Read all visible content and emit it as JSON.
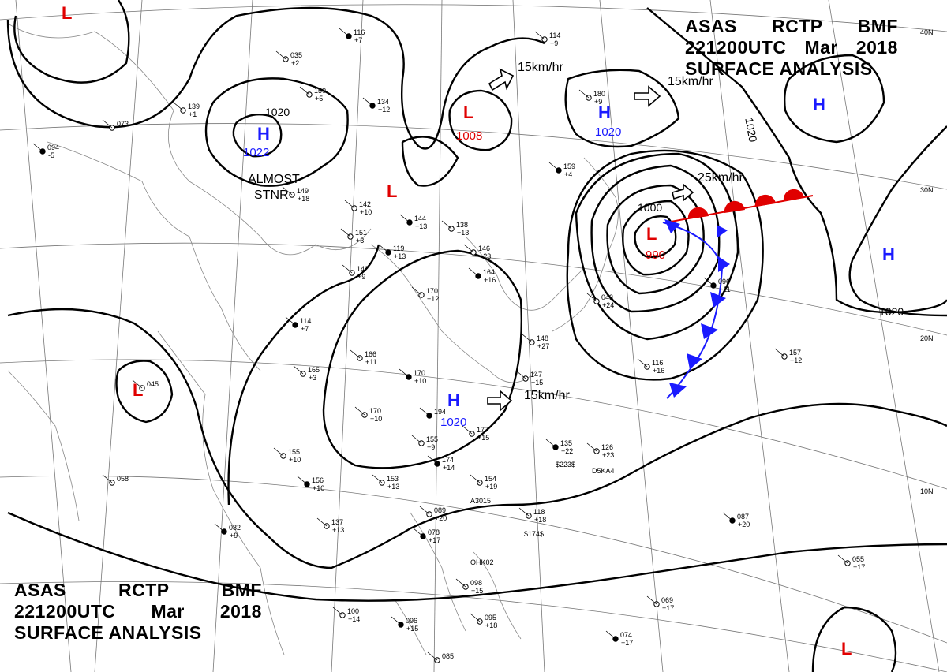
{
  "header": {
    "line1": [
      "ASAS",
      "RCTP",
      "BMF"
    ],
    "line2": [
      "221200UTC",
      "Mar",
      "2018"
    ],
    "line3": "SURFACE ANALYSIS"
  },
  "lat_labels": [
    "40N",
    "30N",
    "20N",
    "10N"
  ],
  "pressure_centers": {
    "high_west": {
      "letter": "H",
      "value": "1022"
    },
    "high_center": {
      "letter": "H",
      "value": "1020"
    },
    "high_north": {
      "letter": "H",
      "value": "1020"
    },
    "high_ne": {
      "letter": "H"
    },
    "high_east": {
      "letter": "H"
    },
    "low_center": {
      "letter": "L",
      "value": "1008"
    },
    "low_main": {
      "letter": "L",
      "value": "990"
    },
    "low_inland": {
      "letter": "L"
    },
    "low_west": {
      "letter": "L"
    },
    "low_se": {
      "letter": "L"
    },
    "low_top": {
      "letter": "L"
    }
  },
  "isobar_labels": [
    "1020",
    "1020",
    "1000",
    "1020",
    "1020"
  ],
  "annotations": {
    "stationary_line1": "ALMOST",
    "stationary_line2": "STNR"
  },
  "motion_vectors": [
    "15km/hr",
    "15km/hr",
    "25km/hr",
    "15km/hr"
  ],
  "colors": {
    "high": "#1a1aff",
    "low": "#e00000",
    "front_warm": "#e00000",
    "front_cold": "#1a1aff"
  },
  "stations": [
    {
      "t": "116",
      "d": "+7"
    },
    {
      "t": "035",
      "d": "+2"
    },
    {
      "t": "150",
      "d": "+5"
    },
    {
      "t": "134",
      "d": "+12"
    },
    {
      "t": "139",
      "d": "+1"
    },
    {
      "t": "073",
      "d": ""
    },
    {
      "t": "094",
      "d": "-5"
    },
    {
      "t": "142",
      "d": "+10"
    },
    {
      "t": "149",
      "d": "+18"
    },
    {
      "t": "144",
      "d": "+13"
    },
    {
      "t": "138",
      "d": "+13"
    },
    {
      "t": "151",
      "d": "+3"
    },
    {
      "t": "119",
      "d": "+13"
    },
    {
      "t": "142",
      "d": "+9"
    },
    {
      "t": "146",
      "d": "+23"
    },
    {
      "t": "164",
      "d": "+16"
    },
    {
      "t": "170",
      "d": "+12"
    },
    {
      "t": "166",
      "d": "+11"
    },
    {
      "t": "170",
      "d": "+10"
    },
    {
      "t": "170",
      "d": "+10"
    },
    {
      "t": "165",
      "d": "+3"
    },
    {
      "t": "194",
      "d": ""
    },
    {
      "t": "177",
      "d": "+15"
    },
    {
      "t": "155",
      "d": "+9"
    },
    {
      "t": "174",
      "d": "+14"
    },
    {
      "t": "153",
      "d": "+13"
    },
    {
      "t": "154",
      "d": "+19"
    },
    {
      "t": "156",
      "d": "+10"
    },
    {
      "t": "155",
      "d": "+10"
    },
    {
      "t": "137",
      "d": "+13"
    },
    {
      "t": "082",
      "d": "+9"
    },
    {
      "t": "058",
      "d": ""
    },
    {
      "t": "045",
      "d": ""
    },
    {
      "t": "114",
      "d": "+7"
    },
    {
      "t": "147",
      "d": "+15"
    },
    {
      "t": "148",
      "d": "+27"
    },
    {
      "t": "135",
      "d": "+22"
    },
    {
      "t": "126",
      "d": "+23"
    },
    {
      "t": "116",
      "d": "+16"
    },
    {
      "t": "096",
      "d": "+11"
    },
    {
      "t": "043",
      "d": "+24"
    },
    {
      "t": "157",
      "d": "+12"
    },
    {
      "t": "087",
      "d": "+20"
    },
    {
      "t": "089",
      "d": "+20"
    },
    {
      "t": "118",
      "d": "+18"
    },
    {
      "t": "078",
      "d": "+17"
    },
    {
      "t": "098",
      "d": "+15"
    },
    {
      "t": "100",
      "d": "+14"
    },
    {
      "t": "096",
      "d": "+15"
    },
    {
      "t": "095",
      "d": "+18"
    },
    {
      "t": "069",
      "d": "+17"
    },
    {
      "t": "074",
      "d": "+17"
    },
    {
      "t": "055",
      "d": "+17"
    },
    {
      "t": "085",
      "d": ""
    },
    {
      "t": "159",
      "d": "+4"
    },
    {
      "t": "180",
      "d": "+9"
    },
    {
      "t": "114",
      "d": "+9"
    }
  ],
  "ship_ids": [
    "A3015",
    "D5KA4",
    "OHK02",
    "$223$",
    "$174$"
  ]
}
